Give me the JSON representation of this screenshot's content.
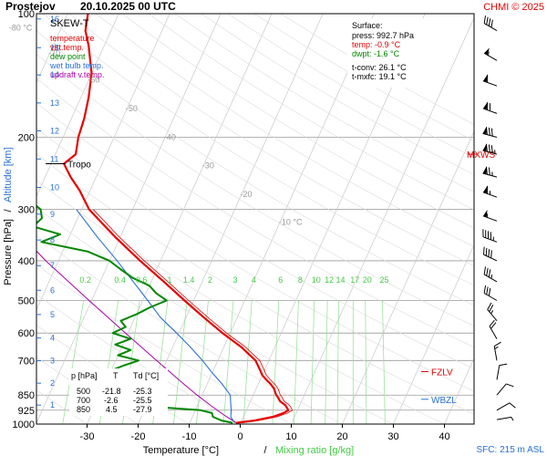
{
  "header": {
    "station": "Prostejov",
    "datetime": "20.10.2025 00 UTC",
    "copyright": "CHMI © 2025"
  },
  "chart_data": {
    "type": "line",
    "title": "SKEW-T",
    "xlabel_temp": "Temperature [°C]",
    "xlabel_sep": "/",
    "xlabel_mix": "Mixing ratio [g/kg]",
    "ylabel_pressure": "Pressure [hPa]",
    "ylabel_sep": "/",
    "ylabel_alt": "Altitude [km]",
    "xlim": [
      -35,
      45
    ],
    "ylim": [
      1000,
      100
    ],
    "x_ticks": [
      "-30",
      "-20",
      "-10",
      "0",
      "10",
      "20",
      "30",
      "40"
    ],
    "x_tick_values": [
      -30,
      -20,
      -10,
      0,
      10,
      20,
      30,
      40
    ],
    "pressure_ticks": [
      {
        "label": "100",
        "p": 100
      },
      {
        "label": "200",
        "p": 200
      },
      {
        "label": "300",
        "p": 300
      },
      {
        "label": "400",
        "p": 400
      },
      {
        "label": "500",
        "p": 500
      },
      {
        "label": "600",
        "p": 600
      },
      {
        "label": "700",
        "p": 700
      },
      {
        "label": "850",
        "p": 850
      },
      {
        "label": "925",
        "p": 925
      },
      {
        "label": "1000",
        "p": 1000
      }
    ],
    "altitude_ticks": [
      {
        "label": "16",
        "p": 103
      },
      {
        "label": "15",
        "p": 121
      },
      {
        "label": "14",
        "p": 141
      },
      {
        "label": "13",
        "p": 165
      },
      {
        "label": "12",
        "p": 193
      },
      {
        "label": "11",
        "p": 226
      },
      {
        "label": "10",
        "p": 265
      },
      {
        "label": "9",
        "p": 308
      },
      {
        "label": "8",
        "p": 356
      },
      {
        "label": "7",
        "p": 411
      },
      {
        "label": "6",
        "p": 472
      },
      {
        "label": "5",
        "p": 541
      },
      {
        "label": "4",
        "p": 617
      },
      {
        "label": "3",
        "p": 701
      },
      {
        "label": "2",
        "p": 795
      },
      {
        "label": "1",
        "p": 899
      }
    ],
    "isotherm_labels": [
      {
        "label": "-80 °C",
        "t": -80,
        "p": 110
      },
      {
        "label": "-70",
        "t": -70,
        "p": 127
      },
      {
        "label": "-60",
        "t": -60,
        "p": 147
      },
      {
        "label": "-50",
        "t": -50,
        "p": 173
      },
      {
        "label": "-40",
        "t": -40,
        "p": 203
      },
      {
        "label": "-30",
        "t": -30,
        "p": 238
      },
      {
        "label": "-20",
        "t": -20,
        "p": 280
      },
      {
        "label": "-10 °C",
        "t": -10,
        "p": 327
      }
    ],
    "mixing_ratio_labels": [
      "0.2",
      "0.4",
      "0.6",
      "1",
      "1.4",
      "2",
      "3",
      "4",
      "6",
      "8",
      "10",
      "12",
      "14",
      "17",
      "20",
      "25"
    ],
    "mixing_ratio_values": [
      0.2,
      0.4,
      0.6,
      1,
      1.4,
      2,
      3,
      4,
      6,
      8,
      10,
      12,
      14,
      17,
      20,
      25
    ],
    "legend": [
      {
        "name": "temperature",
        "color": "#e60000"
      },
      {
        "name": "virt.temp.",
        "color": "#e60000"
      },
      {
        "name": "dew point",
        "color": "#008800"
      },
      {
        "name": "wet bulb temp.",
        "color": "#2a6fd6"
      },
      {
        "name": "updraft v.temp.",
        "color": "#aa00aa"
      }
    ],
    "surface": {
      "title": "Surface:",
      "press": "press: 992.7 hPa",
      "temp": "temp: -0.9 °C",
      "dwpt": "dwpt: -1.6 °C",
      "tconv": "t-conv: 26.1 °C",
      "tmxfc": "t-mxfc: 19.1 °C"
    },
    "levels_table": {
      "headers": [
        "p [hPa]",
        "T",
        "Td [°C]"
      ],
      "rows": [
        [
          "500",
          "-21.8",
          "-25.3"
        ],
        [
          "700",
          "-2.6",
          "-25.5"
        ],
        [
          "850",
          "4.5",
          "-27.9"
        ]
      ]
    },
    "markers": [
      {
        "label": "Tropo",
        "p": 232,
        "color": "#000000"
      },
      {
        "label": "MXWS",
        "p": 220,
        "color": "#e60000"
      },
      {
        "label": "FZLV",
        "p": 745,
        "color": "#e60000"
      },
      {
        "label": "WBZL",
        "p": 870,
        "color": "#2a6fd6"
      }
    ],
    "sfc_label": "SFC: 215 m ASL",
    "series": [
      {
        "name": "temperature",
        "color": "#e60000",
        "points": [
          [
            992.7,
            -0.9
          ],
          [
            980,
            2.5
          ],
          [
            960,
            5.8
          ],
          [
            940,
            7.5
          ],
          [
            925,
            8.2
          ],
          [
            900,
            7.2
          ],
          [
            880,
            5.8
          ],
          [
            860,
            5.0
          ],
          [
            850,
            4.5
          ],
          [
            820,
            3.5
          ],
          [
            800,
            2.5
          ],
          [
            780,
            1.2
          ],
          [
            760,
            0.0
          ],
          [
            740,
            -0.8
          ],
          [
            700,
            -2.6
          ],
          [
            650,
            -6.5
          ],
          [
            600,
            -11.5
          ],
          [
            550,
            -16.5
          ],
          [
            500,
            -21.8
          ],
          [
            450,
            -27.5
          ],
          [
            400,
            -34.0
          ],
          [
            350,
            -41.0
          ],
          [
            300,
            -48.5
          ],
          [
            270,
            -52.0
          ],
          [
            250,
            -55.0
          ],
          [
            232,
            -57.5
          ],
          [
            220,
            -56.0
          ],
          [
            200,
            -57.0
          ],
          [
            180,
            -57.5
          ],
          [
            160,
            -58.5
          ],
          [
            140,
            -60.0
          ],
          [
            120,
            -63.0
          ],
          [
            110,
            -65.0
          ],
          [
            100,
            -66.0
          ]
        ]
      },
      {
        "name": "dew point",
        "color": "#008800",
        "points": [
          [
            992.7,
            -1.6
          ],
          [
            980,
            -4.0
          ],
          [
            960,
            -6.0
          ],
          [
            940,
            -6.5
          ],
          [
            925,
            -9.0
          ],
          [
            910,
            -17.0
          ],
          [
            890,
            -24.0
          ],
          [
            870,
            -27.0
          ],
          [
            850,
            -27.9
          ],
          [
            820,
            -29.0
          ],
          [
            800,
            -30.5
          ],
          [
            780,
            -32.0
          ],
          [
            760,
            -31.0
          ],
          [
            740,
            -30.0
          ],
          [
            720,
            -28.0
          ],
          [
            700,
            -25.5
          ],
          [
            680,
            -30.0
          ],
          [
            660,
            -28.0
          ],
          [
            640,
            -31.5
          ],
          [
            620,
            -29.0
          ],
          [
            600,
            -33.0
          ],
          [
            580,
            -31.0
          ],
          [
            560,
            -32.5
          ],
          [
            540,
            -30.0
          ],
          [
            520,
            -28.0
          ],
          [
            500,
            -25.3
          ],
          [
            480,
            -28.0
          ],
          [
            460,
            -30.0
          ],
          [
            440,
            -34.0
          ],
          [
            420,
            -37.0
          ],
          [
            400,
            -40.0
          ],
          [
            380,
            -45.0
          ],
          [
            360,
            -55.0
          ],
          [
            345,
            -52.0
          ],
          [
            330,
            -58.0
          ],
          [
            315,
            -57.0
          ],
          [
            300,
            -58.0
          ],
          [
            280,
            -62.0
          ],
          [
            260,
            -64.0
          ],
          [
            240,
            -67.0
          ],
          [
            220,
            -69.0
          ],
          [
            200,
            -72.0
          ],
          [
            180,
            -74.0
          ],
          [
            160,
            -77.0
          ],
          [
            140,
            -79.0
          ],
          [
            120,
            -81.0
          ],
          [
            110,
            -83.0
          ],
          [
            100,
            -84.0
          ]
        ]
      },
      {
        "name": "wet bulb temp.",
        "color": "#2a6fd6",
        "points": [
          [
            992.7,
            -1.2
          ],
          [
            960,
            -2.5
          ],
          [
            925,
            -3.0
          ],
          [
            900,
            -3.5
          ],
          [
            850,
            -4.5
          ],
          [
            800,
            -7.0
          ],
          [
            750,
            -10.0
          ],
          [
            700,
            -13.0
          ],
          [
            650,
            -16.5
          ],
          [
            600,
            -20.5
          ],
          [
            550,
            -25.0
          ],
          [
            500,
            -29.0
          ],
          [
            450,
            -33.5
          ],
          [
            400,
            -38.5
          ],
          [
            350,
            -44.5
          ],
          [
            300,
            -51.0
          ]
        ]
      },
      {
        "name": "updraft v.temp.",
        "color": "#aa00aa",
        "points": [
          [
            992.7,
            -0.9
          ],
          [
            950,
            -4.0
          ],
          [
            900,
            -7.5
          ],
          [
            850,
            -11.0
          ],
          [
            800,
            -14.5
          ],
          [
            700,
            -22.0
          ],
          [
            600,
            -30.5
          ],
          [
            500,
            -40.5
          ],
          [
            400,
            -52.5
          ],
          [
            300,
            -66.5
          ],
          [
            250,
            -74.5
          ],
          [
            200,
            -83.5
          ],
          [
            150,
            -95.0
          ],
          [
            120,
            -103.0
          ]
        ]
      }
    ],
    "wind_barbs": [
      {
        "p": 110,
        "dir": 300,
        "speed": 40
      },
      {
        "p": 130,
        "dir": 300,
        "speed": 55
      },
      {
        "p": 150,
        "dir": 290,
        "speed": 60
      },
      {
        "p": 175,
        "dir": 290,
        "speed": 70
      },
      {
        "p": 200,
        "dir": 285,
        "speed": 80
      },
      {
        "p": 220,
        "dir": 285,
        "speed": 85
      },
      {
        "p": 250,
        "dir": 285,
        "speed": 75
      },
      {
        "p": 280,
        "dir": 290,
        "speed": 65
      },
      {
        "p": 320,
        "dir": 290,
        "speed": 55
      },
      {
        "p": 360,
        "dir": 290,
        "speed": 45
      },
      {
        "p": 400,
        "dir": 295,
        "speed": 40
      },
      {
        "p": 450,
        "dir": 300,
        "speed": 35
      },
      {
        "p": 500,
        "dir": 300,
        "speed": 30
      },
      {
        "p": 560,
        "dir": 320,
        "speed": 25
      },
      {
        "p": 620,
        "dir": 330,
        "speed": 20
      },
      {
        "p": 700,
        "dir": 350,
        "speed": 15
      },
      {
        "p": 780,
        "dir": 10,
        "speed": 10
      },
      {
        "p": 850,
        "dir": 40,
        "speed": 10
      },
      {
        "p": 925,
        "dir": 60,
        "speed": 10
      },
      {
        "p": 975,
        "dir": 80,
        "speed": 5
      }
    ]
  }
}
